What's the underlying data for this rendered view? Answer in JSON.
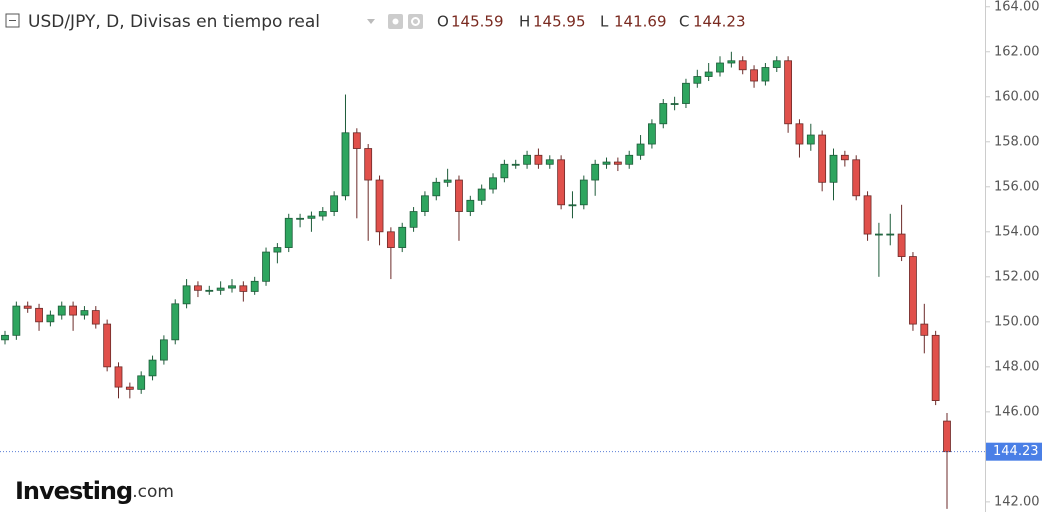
{
  "chart_data": {
    "type": "candlestick",
    "title": "USD/JPY, D, Divisas en tiempo real",
    "ohlc_labels": [
      "O",
      "H",
      "L",
      "C"
    ],
    "watermark": [
      "Investing",
      ".com"
    ],
    "up_color": "#2ea55f",
    "down_color": "#e0504b",
    "ylim": [
      141.55,
      164.3
    ],
    "yticks": [
      {
        "value": 142,
        "label": "142.00"
      },
      {
        "value": 144,
        "label": "144.00"
      },
      {
        "value": 146,
        "label": "146.00"
      },
      {
        "value": 148,
        "label": "148.00"
      },
      {
        "value": 150,
        "label": "150.00"
      },
      {
        "value": 152,
        "label": "152.00"
      },
      {
        "value": 154,
        "label": "154.00"
      },
      {
        "value": 156,
        "label": "156.00"
      },
      {
        "value": 158,
        "label": "158.00"
      },
      {
        "value": 160,
        "label": "160.00"
      },
      {
        "value": 162,
        "label": "162.00"
      },
      {
        "value": 164,
        "label": "164.00"
      }
    ],
    "series": [
      {
        "name": "USD/JPY",
        "open": [
          149.2,
          149.4,
          150.7,
          150.6,
          150.0,
          150.3,
          150.7,
          150.3,
          150.5,
          149.9,
          148.0,
          147.1,
          147.0,
          147.6,
          148.3,
          149.2,
          150.8,
          151.6,
          151.4,
          151.4,
          151.5,
          151.6,
          151.35,
          151.8,
          153.1,
          153.3,
          154.6,
          154.6,
          154.7,
          154.9,
          155.6,
          158.4,
          157.7,
          156.3,
          154.0,
          153.3,
          154.2,
          154.9,
          155.6,
          156.2,
          156.3,
          154.9,
          155.4,
          155.9,
          156.4,
          157.0,
          157.0,
          157.4,
          157.0,
          157.2,
          155.2,
          155.2,
          156.3,
          157.0,
          157.1,
          157.0,
          157.4,
          157.9,
          158.8,
          159.7,
          159.7,
          160.6,
          160.9,
          161.1,
          161.5,
          161.6,
          161.2,
          160.7,
          161.3,
          161.6,
          158.8,
          157.9,
          158.3,
          156.2,
          157.4,
          157.2,
          155.6,
          153.9,
          153.9,
          153.9,
          152.9,
          149.9,
          149.4,
          145.59
        ],
        "high": [
          149.6,
          150.9,
          150.9,
          150.8,
          150.5,
          150.9,
          150.9,
          150.7,
          150.7,
          150.1,
          148.2,
          147.3,
          147.8,
          148.5,
          149.4,
          151.0,
          151.9,
          151.8,
          151.6,
          151.8,
          151.9,
          151.8,
          152.0,
          153.3,
          153.5,
          154.8,
          154.8,
          154.9,
          155.1,
          155.8,
          160.1,
          158.6,
          157.9,
          156.5,
          154.2,
          154.4,
          155.1,
          155.8,
          156.4,
          156.8,
          156.5,
          155.6,
          156.1,
          156.6,
          157.2,
          157.2,
          157.6,
          157.7,
          157.4,
          157.4,
          155.8,
          156.5,
          157.2,
          157.3,
          157.3,
          157.6,
          158.3,
          159.0,
          159.9,
          160.0,
          160.8,
          161.2,
          161.5,
          161.8,
          162.0,
          161.8,
          161.4,
          161.5,
          161.8,
          161.8,
          159.0,
          158.8,
          158.5,
          157.7,
          157.6,
          157.4,
          155.8,
          154.4,
          154.8,
          155.2,
          153.1,
          150.8,
          149.6,
          145.95
        ],
        "low": [
          149.0,
          149.2,
          150.4,
          149.6,
          149.8,
          150.1,
          149.6,
          150.1,
          149.7,
          147.8,
          146.6,
          146.6,
          146.8,
          147.4,
          148.1,
          149.0,
          150.6,
          151.1,
          151.2,
          151.2,
          151.3,
          150.9,
          151.2,
          151.6,
          152.6,
          153.1,
          154.2,
          154.0,
          154.5,
          154.7,
          155.4,
          154.6,
          153.6,
          153.4,
          151.9,
          153.1,
          154.0,
          154.7,
          155.4,
          156.0,
          153.6,
          154.7,
          155.2,
          155.7,
          156.2,
          156.8,
          156.8,
          156.8,
          156.8,
          155.0,
          154.6,
          155.0,
          155.6,
          156.8,
          156.7,
          156.8,
          157.2,
          157.7,
          158.6,
          159.4,
          159.5,
          160.4,
          160.7,
          160.9,
          161.3,
          161.0,
          160.4,
          160.5,
          161.1,
          158.4,
          157.3,
          157.6,
          155.8,
          155.4,
          156.9,
          155.4,
          153.6,
          152.0,
          153.4,
          152.7,
          149.6,
          148.6,
          146.3,
          141.69
        ],
        "close": [
          149.4,
          150.7,
          150.6,
          150.0,
          150.3,
          150.7,
          150.3,
          150.5,
          149.9,
          148.0,
          147.1,
          147.0,
          147.6,
          148.3,
          149.2,
          150.8,
          151.6,
          151.4,
          151.4,
          151.5,
          151.6,
          151.35,
          151.8,
          153.1,
          153.3,
          154.6,
          154.6,
          154.7,
          154.9,
          155.6,
          158.4,
          157.7,
          156.3,
          154.0,
          153.3,
          154.2,
          154.9,
          155.6,
          156.2,
          156.3,
          154.9,
          155.4,
          155.9,
          156.4,
          157.0,
          157.0,
          157.4,
          157.0,
          157.2,
          155.2,
          155.2,
          156.3,
          157.0,
          157.1,
          157.0,
          157.4,
          157.9,
          158.8,
          159.7,
          159.7,
          160.6,
          160.9,
          161.1,
          161.5,
          161.6,
          161.2,
          160.7,
          161.3,
          161.6,
          158.8,
          157.9,
          158.3,
          156.2,
          157.4,
          157.2,
          155.6,
          153.9,
          153.9,
          153.9,
          152.9,
          149.9,
          149.4,
          146.5,
          144.23
        ]
      }
    ]
  }
}
